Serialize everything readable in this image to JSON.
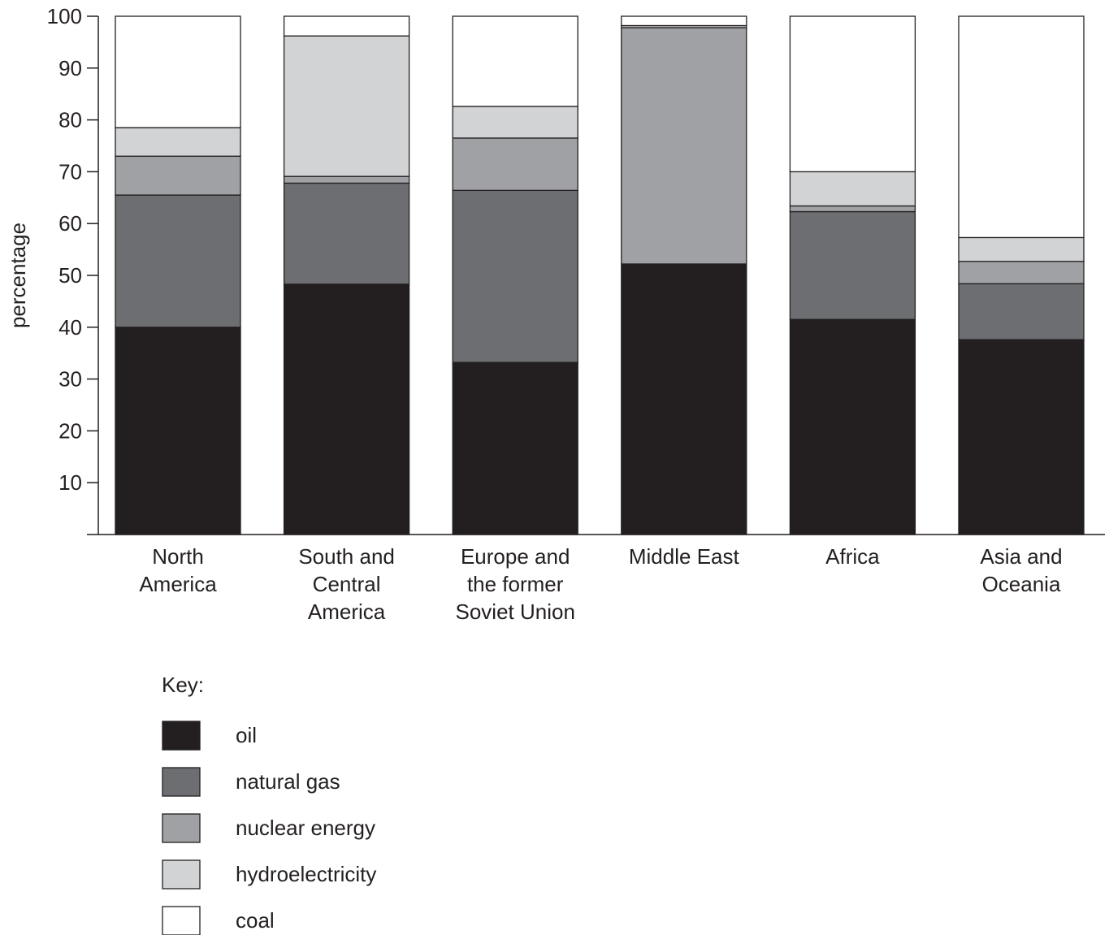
{
  "chart_data": {
    "type": "bar",
    "stacked": true,
    "ylabel": "percentage",
    "xlabel": "",
    "ylim": [
      0,
      100
    ],
    "yticks": [
      10,
      20,
      30,
      40,
      50,
      60,
      70,
      80,
      90,
      100
    ],
    "grid": false,
    "categories": [
      [
        "North",
        "America"
      ],
      [
        "South and",
        "Central",
        "America"
      ],
      [
        "Europe and",
        "the former",
        "Soviet Union"
      ],
      [
        "Middle East"
      ],
      [
        "Africa"
      ],
      [
        "Asia and",
        "Oceania"
      ]
    ],
    "series": [
      {
        "name": "oil",
        "color": "#231f20",
        "values": [
          40.0,
          48.3,
          33.2,
          52.2,
          41.5,
          37.6
        ]
      },
      {
        "name": "natural gas",
        "color": "#6d6e71",
        "values": [
          25.5,
          19.5,
          33.2,
          0.0,
          20.8,
          10.8
        ]
      },
      {
        "name": "nuclear energy",
        "color": "#a0a1a5",
        "values": [
          7.5,
          1.3,
          10.1,
          45.6,
          1.1,
          4.3
        ]
      },
      {
        "name": "hydroelectricity",
        "color": "#d1d3d4",
        "values": [
          5.5,
          27.1,
          6.1,
          0.4,
          6.6,
          4.6
        ]
      },
      {
        "name": "coal",
        "color": "#ffffff",
        "values": [
          21.5,
          3.8,
          17.4,
          1.8,
          30.0,
          42.7
        ]
      }
    ],
    "legend": {
      "title": "Key:",
      "placement": "bottom-left",
      "entries": [
        "oil",
        "natural gas",
        "nuclear energy",
        "hydroelectricity",
        "coal"
      ]
    }
  }
}
